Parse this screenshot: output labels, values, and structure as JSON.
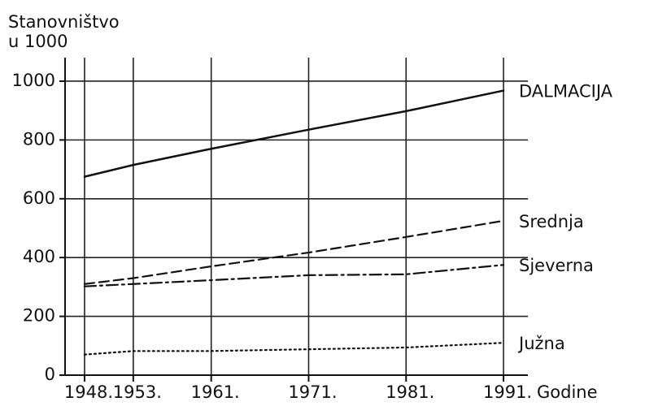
{
  "chart_data": {
    "type": "line",
    "ylabel": [
      "Stanovništvo",
      "u 1000"
    ],
    "xlabel": "Godine",
    "xlim": [
      1946,
      1993.5
    ],
    "xticks": [
      {
        "value": 1948,
        "label": "1948."
      },
      {
        "value": 1953,
        "label": "1953."
      },
      {
        "value": 1961,
        "label": "1961."
      },
      {
        "value": 1971,
        "label": "1971."
      },
      {
        "value": 1981,
        "label": "1981."
      },
      {
        "value": 1991,
        "label": "1991."
      }
    ],
    "ylim": [
      0,
      1080
    ],
    "yticks": [
      0,
      200,
      400,
      600,
      800,
      1000
    ],
    "grid": true,
    "x": [
      1948,
      1953,
      1961,
      1971,
      1981,
      1991
    ],
    "series": [
      {
        "name": "DALMACIJA",
        "color": "#111111",
        "dash": "solid",
        "values": [
          675,
          715,
          770,
          835,
          898,
          968
        ]
      },
      {
        "name": "Srednja",
        "color": "#111111",
        "dash": "dashed",
        "values": [
          310,
          330,
          370,
          417,
          470,
          525
        ]
      },
      {
        "name": "Sjeverna",
        "color": "#111111",
        "dash": "dashdot",
        "values": [
          302,
          310,
          323,
          340,
          343,
          375
        ]
      },
      {
        "name": "Južna",
        "color": "#111111",
        "dash": "dotted",
        "values": [
          70,
          82,
          82,
          88,
          94,
          110
        ]
      }
    ]
  }
}
